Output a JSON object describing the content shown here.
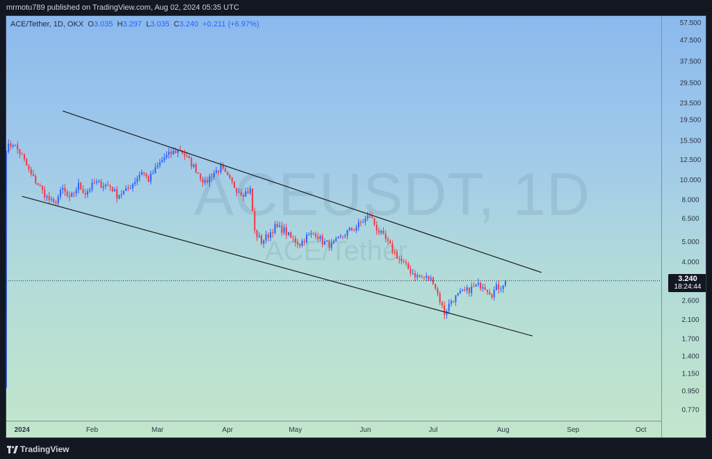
{
  "header": {
    "publisher_line": "mrmotu789 published on TradingView.com, Aug 02, 2024 05:35 UTC"
  },
  "legend": {
    "symbol": "ACE/Tether, 1D, OKX",
    "o_label": "O",
    "o_value": "3.035",
    "h_label": "H",
    "h_value": "3.297",
    "l_label": "L",
    "l_value": "3.035",
    "c_label": "C",
    "c_value": "3.240",
    "change": "+0.211 (+6.97%)"
  },
  "watermark": {
    "symbol": "ACEUSDT, 1D",
    "description": "ACE/Tether"
  },
  "last_price": {
    "value": "3.240",
    "countdown": "18:24:44"
  },
  "footer": {
    "brand": "TradingView"
  },
  "colors": {
    "up": "#2962ff",
    "down": "#f23645",
    "trendline": "#1a1a1a"
  },
  "chart_data": {
    "type": "candlestick",
    "title": "ACE/Tether, 1D, OKX",
    "y_scale": "log",
    "ylim": [
      0.68,
      62
    ],
    "y_ticks": [
      "57.500",
      "47.500",
      "37.500",
      "29.500",
      "23.500",
      "19.500",
      "15.500",
      "12.500",
      "10.000",
      "8.000",
      "6.500",
      "5.000",
      "4.000",
      "3.240",
      "2.600",
      "2.100",
      "1.700",
      "1.400",
      "1.150",
      "0.950",
      "0.770"
    ],
    "x_ticks": [
      "2024",
      "Feb",
      "Mar",
      "Apr",
      "May",
      "Jun",
      "Jul",
      "Aug",
      "Sep",
      "Oct"
    ],
    "x_range": [
      "2023-12-25",
      "2024-10-10"
    ],
    "close_path": [
      [
        "2023-12-25",
        14.2
      ],
      [
        "2023-12-28",
        15.0
      ],
      [
        "2024-01-01",
        13.0
      ],
      [
        "2024-01-05",
        10.5
      ],
      [
        "2024-01-08",
        9.5
      ],
      [
        "2024-01-12",
        8.2
      ],
      [
        "2024-01-15",
        7.6
      ],
      [
        "2024-01-19",
        9.0
      ],
      [
        "2024-01-22",
        8.0
      ],
      [
        "2024-01-26",
        9.4
      ],
      [
        "2024-01-29",
        8.6
      ],
      [
        "2024-02-02",
        9.6
      ],
      [
        "2024-02-05",
        9.5
      ],
      [
        "2024-02-09",
        9.3
      ],
      [
        "2024-02-12",
        8.4
      ],
      [
        "2024-02-16",
        8.8
      ],
      [
        "2024-02-19",
        9.6
      ],
      [
        "2024-02-23",
        11.0
      ],
      [
        "2024-02-26",
        10.0
      ],
      [
        "2024-03-01",
        11.6
      ],
      [
        "2024-03-04",
        12.8
      ],
      [
        "2024-03-08",
        13.6
      ],
      [
        "2024-03-11",
        14.0
      ],
      [
        "2024-03-15",
        12.3
      ],
      [
        "2024-03-18",
        11.2
      ],
      [
        "2024-03-22",
        9.6
      ],
      [
        "2024-03-25",
        10.6
      ],
      [
        "2024-03-29",
        11.4
      ],
      [
        "2024-04-01",
        10.2
      ],
      [
        "2024-04-05",
        9.0
      ],
      [
        "2024-04-08",
        8.6
      ],
      [
        "2024-04-11",
        8.9
      ],
      [
        "2024-04-13",
        5.6
      ],
      [
        "2024-04-16",
        5.0
      ],
      [
        "2024-04-19",
        5.4
      ],
      [
        "2024-04-22",
        5.9
      ],
      [
        "2024-04-26",
        5.7
      ],
      [
        "2024-04-29",
        5.2
      ],
      [
        "2024-05-03",
        4.9
      ],
      [
        "2024-05-06",
        5.3
      ],
      [
        "2024-05-10",
        5.5
      ],
      [
        "2024-05-13",
        5.0
      ],
      [
        "2024-05-17",
        4.8
      ],
      [
        "2024-05-20",
        5.1
      ],
      [
        "2024-05-24",
        5.6
      ],
      [
        "2024-05-27",
        5.8
      ],
      [
        "2024-05-31",
        6.3
      ],
      [
        "2024-06-03",
        6.7
      ],
      [
        "2024-06-06",
        5.8
      ],
      [
        "2024-06-10",
        5.1
      ],
      [
        "2024-06-14",
        4.4
      ],
      [
        "2024-06-17",
        4.0
      ],
      [
        "2024-06-21",
        3.6
      ],
      [
        "2024-06-24",
        3.4
      ],
      [
        "2024-06-28",
        3.35
      ],
      [
        "2024-07-01",
        3.25
      ],
      [
        "2024-07-04",
        2.6
      ],
      [
        "2024-07-06",
        2.25
      ],
      [
        "2024-07-09",
        2.6
      ],
      [
        "2024-07-13",
        2.8
      ],
      [
        "2024-07-16",
        2.9
      ],
      [
        "2024-07-20",
        3.05
      ],
      [
        "2024-07-23",
        3.1
      ],
      [
        "2024-07-27",
        2.8
      ],
      [
        "2024-07-29",
        3.0
      ],
      [
        "2024-07-31",
        3.05
      ],
      [
        "2024-08-02",
        3.24
      ]
    ],
    "first_day_low": 0.98,
    "trendlines": [
      {
        "name": "upper",
        "from": [
          "2024-01-19",
          21.5
        ],
        "to": [
          "2024-08-18",
          3.55
        ]
      },
      {
        "name": "lower",
        "from": [
          "2024-01-01",
          8.3
        ],
        "to": [
          "2024-08-14",
          1.75
        ]
      }
    ]
  }
}
